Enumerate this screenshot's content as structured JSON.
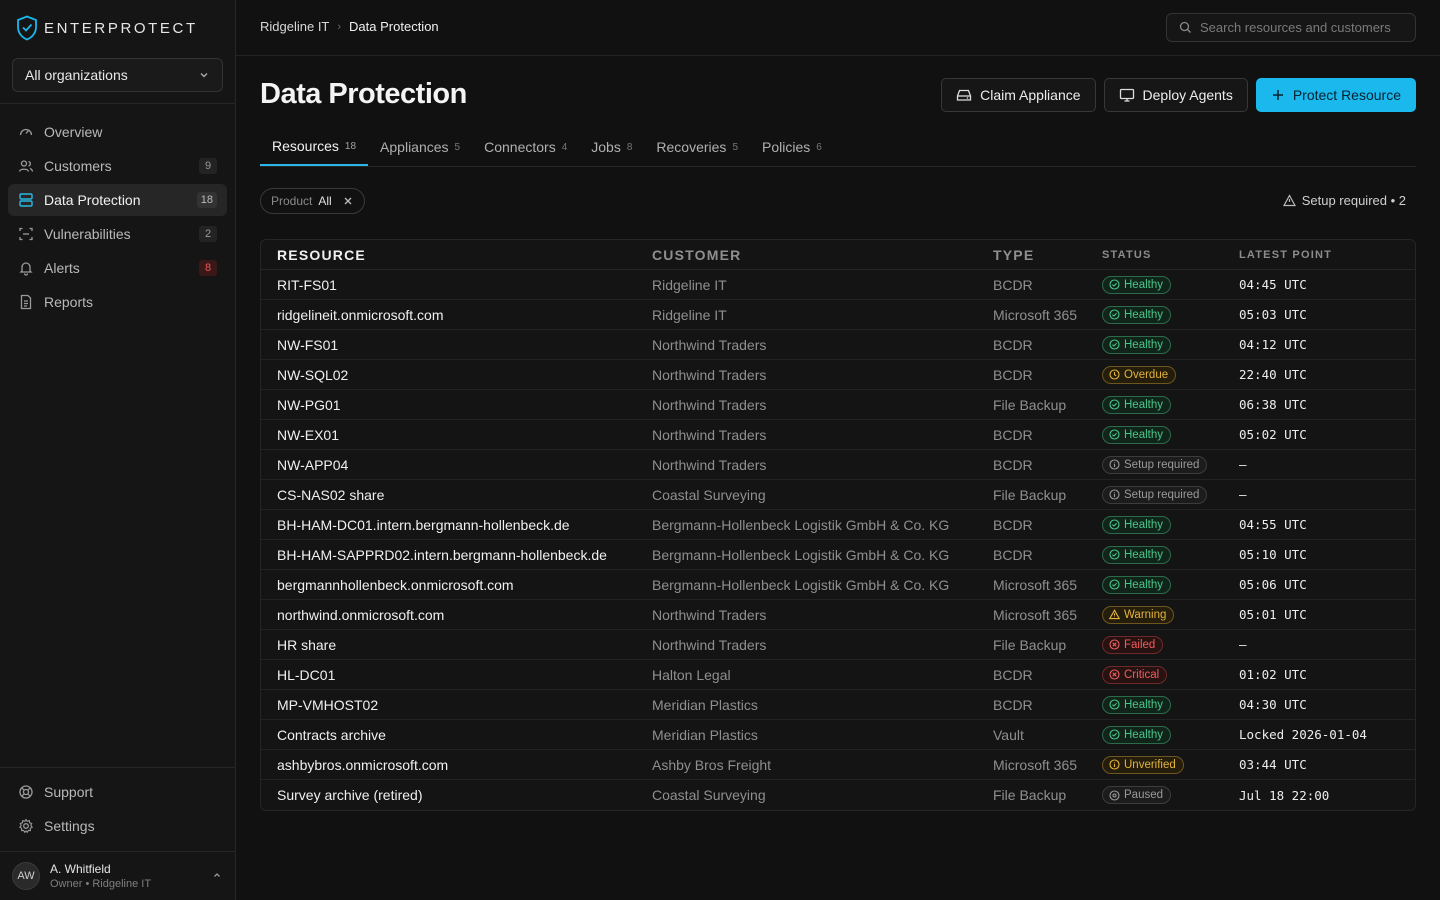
{
  "app": {
    "name": "ENTERPROTECT",
    "accent": "#1ab8ec"
  },
  "sidebar": {
    "org_select": "All organizations",
    "items": [
      {
        "label": "Overview",
        "icon": "gauge-icon",
        "badge": ""
      },
      {
        "label": "Customers",
        "icon": "users-icon",
        "badge": "9"
      },
      {
        "label": "Data Protection",
        "icon": "server-icon",
        "badge": "18",
        "active": true
      },
      {
        "label": "Vulnerabilities",
        "icon": "scan-icon",
        "badge": "2"
      },
      {
        "label": "Alerts",
        "icon": "bell-icon",
        "badge": "8"
      },
      {
        "label": "Reports",
        "icon": "file-icon",
        "badge": ""
      }
    ],
    "bottom": [
      {
        "label": "Support",
        "icon": "lifebuoy-icon"
      },
      {
        "label": "Settings",
        "icon": "gear-icon"
      }
    ],
    "user": {
      "initials": "AW",
      "name": "A. Whitfield",
      "role": "Owner • Ridgeline IT"
    }
  },
  "header": {
    "breadcrumb": [
      "Ridgeline IT",
      "Data Protection"
    ],
    "search_placeholder": "Search resources and customers"
  },
  "page": {
    "title": "Data Protection",
    "actions": {
      "claim": "Claim Appliance",
      "deploy": "Deploy Agents",
      "protect": "Protect Resource"
    },
    "tabs": [
      {
        "label": "Resources",
        "count": "18",
        "active": true
      },
      {
        "label": "Appliances",
        "count": "5"
      },
      {
        "label": "Connectors",
        "count": "4"
      },
      {
        "label": "Jobs",
        "count": "8"
      },
      {
        "label": "Recoveries",
        "count": "5"
      },
      {
        "label": "Policies",
        "count": "6"
      }
    ],
    "filter": {
      "key": "Product",
      "value": "All"
    },
    "setup_note": "Setup required • 2"
  },
  "table": {
    "columns": [
      "RESOURCE",
      "CUSTOMER",
      "TYPE",
      "STATUS",
      "LATEST POINT"
    ],
    "rows": [
      {
        "resource": "RIT-FS01",
        "customer": "Ridgeline IT",
        "type": "BCDR",
        "status": "Healthy",
        "kind": "healthy",
        "point": "04:45 UTC"
      },
      {
        "resource": "ridgelineit.onmicrosoft.com",
        "customer": "Ridgeline IT",
        "type": "Microsoft 365",
        "status": "Healthy",
        "kind": "healthy",
        "point": "05:03 UTC"
      },
      {
        "resource": "NW-FS01",
        "customer": "Northwind Traders",
        "type": "BCDR",
        "status": "Healthy",
        "kind": "healthy",
        "point": "04:12 UTC"
      },
      {
        "resource": "NW-SQL02",
        "customer": "Northwind Traders",
        "type": "BCDR",
        "status": "Overdue",
        "kind": "overdue",
        "point": "22:40 UTC"
      },
      {
        "resource": "NW-PG01",
        "customer": "Northwind Traders",
        "type": "File Backup",
        "status": "Healthy",
        "kind": "healthy",
        "point": "06:38 UTC"
      },
      {
        "resource": "NW-EX01",
        "customer": "Northwind Traders",
        "type": "BCDR",
        "status": "Healthy",
        "kind": "healthy",
        "point": "05:02 UTC"
      },
      {
        "resource": "NW-APP04",
        "customer": "Northwind Traders",
        "type": "BCDR",
        "status": "Setup required",
        "kind": "setup",
        "point": "–"
      },
      {
        "resource": "CS-NAS02 share",
        "customer": "Coastal Surveying",
        "type": "File Backup",
        "status": "Setup required",
        "kind": "setup",
        "point": "–"
      },
      {
        "resource": "BH-HAM-DC01.intern.bergmann-hollenbeck.de",
        "customer": "Bergmann-Hollenbeck Logistik GmbH & Co. KG",
        "type": "BCDR",
        "status": "Healthy",
        "kind": "healthy",
        "point": "04:55 UTC"
      },
      {
        "resource": "BH-HAM-SAPPRD02.intern.bergmann-hollenbeck.de",
        "customer": "Bergmann-Hollenbeck Logistik GmbH & Co. KG",
        "type": "BCDR",
        "status": "Healthy",
        "kind": "healthy",
        "point": "05:10 UTC"
      },
      {
        "resource": "bergmannhollenbeck.onmicrosoft.com",
        "customer": "Bergmann-Hollenbeck Logistik GmbH & Co. KG",
        "type": "Microsoft 365",
        "status": "Healthy",
        "kind": "healthy",
        "point": "05:06 UTC"
      },
      {
        "resource": "northwind.onmicrosoft.com",
        "customer": "Northwind Traders",
        "type": "Microsoft 365",
        "status": "Warning",
        "kind": "warning",
        "point": "05:01 UTC"
      },
      {
        "resource": "HR share",
        "customer": "Northwind Traders",
        "type": "File Backup",
        "status": "Failed",
        "kind": "failed",
        "point": "–"
      },
      {
        "resource": "HL-DC01",
        "customer": "Halton Legal",
        "type": "BCDR",
        "status": "Critical",
        "kind": "critical",
        "point": "01:02 UTC"
      },
      {
        "resource": "MP-VMHOST02",
        "customer": "Meridian Plastics",
        "type": "BCDR",
        "status": "Healthy",
        "kind": "healthy",
        "point": "04:30 UTC"
      },
      {
        "resource": "Contracts archive",
        "customer": "Meridian Plastics",
        "type": "Vault",
        "status": "Healthy",
        "kind": "healthy",
        "point": "Locked 2026-01-04"
      },
      {
        "resource": "ashbybros.onmicrosoft.com",
        "customer": "Ashby Bros Freight",
        "type": "Microsoft 365",
        "status": "Unverified",
        "kind": "unverified",
        "point": "03:44 UTC"
      },
      {
        "resource": "Survey archive (retired)",
        "customer": "Coastal Surveying",
        "type": "File Backup",
        "status": "Paused",
        "kind": "paused",
        "point": "Jul 18 22:00"
      }
    ]
  }
}
